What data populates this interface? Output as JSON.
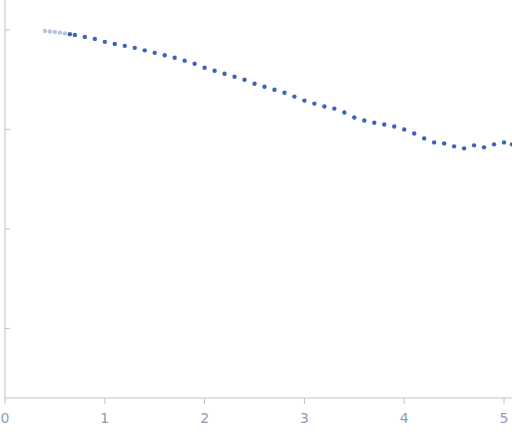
{
  "chart_data": {
    "type": "scatter",
    "log": "y",
    "tick_labels": "x",
    "grid": false,
    "xlim": [
      0,
      5.08
    ],
    "xticks": [
      0,
      1,
      2,
      3,
      4,
      5
    ],
    "ylim": [
      0.0002,
      2
    ],
    "yticks": [
      0.001,
      0.01,
      0.1,
      1
    ],
    "series": [
      {
        "color": "#b4c4e4",
        "marker": "circle",
        "x": [
          0.4,
          0.45,
          0.5,
          0.55,
          0.6
        ],
        "values": [
          0.977,
          0.966,
          0.955,
          0.94,
          0.923
        ]
      },
      {
        "color": "#3a64b8",
        "marker": "circle",
        "x": [
          0.65,
          0.7,
          0.8,
          0.9,
          1.0,
          1.1,
          1.2,
          1.3,
          1.4,
          1.5,
          1.6,
          1.7,
          1.8,
          1.9,
          2.0,
          2.1,
          2.2,
          2.3,
          2.4,
          2.5,
          2.6,
          2.7,
          2.8,
          2.9,
          3.0,
          3.1,
          3.2,
          3.3,
          3.4,
          3.5,
          3.6,
          3.7,
          3.8,
          3.9,
          4.0,
          4.1,
          4.2,
          4.3,
          4.4,
          4.5,
          4.6,
          4.7,
          4.8,
          4.9,
          5.0,
          5.08
        ],
        "values": [
          0.907,
          0.891,
          0.851,
          0.813,
          0.759,
          0.724,
          0.692,
          0.661,
          0.624,
          0.589,
          0.556,
          0.525,
          0.49,
          0.457,
          0.417,
          0.389,
          0.363,
          0.339,
          0.316,
          0.288,
          0.269,
          0.251,
          0.234,
          0.214,
          0.195,
          0.182,
          0.17,
          0.162,
          0.148,
          0.132,
          0.123,
          0.117,
          0.112,
          0.107,
          0.1,
          0.0912,
          0.0813,
          0.0741,
          0.0724,
          0.0676,
          0.0646,
          0.0692,
          0.0661,
          0.0708,
          0.0741,
          0.0708
        ]
      }
    ]
  }
}
